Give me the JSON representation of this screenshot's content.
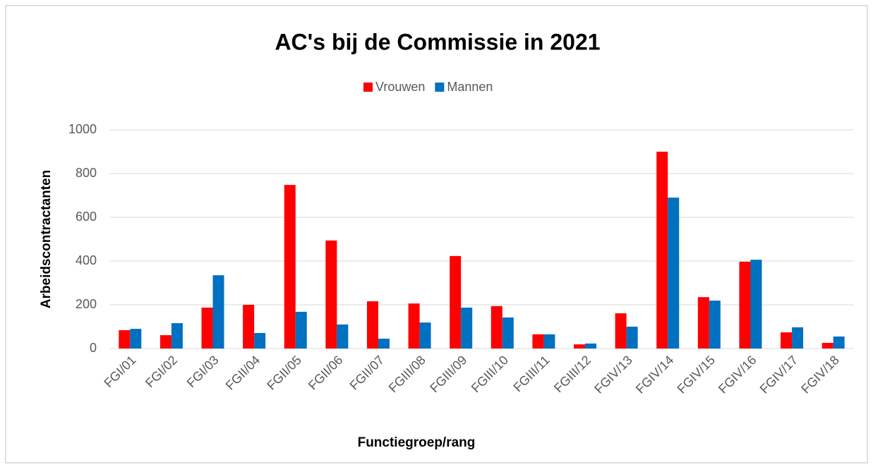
{
  "chart_data": {
    "type": "bar",
    "title": "AC's bij de Commissie in 2021",
    "x_label": "Functiegroep/rang",
    "y_label": "Arbeidscontractanten",
    "categories": [
      "FGI/01",
      "FGI/02",
      "FGI/03",
      "FGII/04",
      "FGII/05",
      "FGII/06",
      "FGII/07",
      "FGIII/08",
      "FGIII/09",
      "FGIII/10",
      "FGIII/11",
      "FGIII/12",
      "FGIV/13",
      "FGIV/14",
      "FGIV/15",
      "FGIV/16",
      "FGIV/17",
      "FGIV/18"
    ],
    "series": [
      {
        "name": "Vrouwen",
        "color": "#ff0000",
        "values": [
          84,
          61,
          187,
          200,
          748,
          494,
          216,
          206,
          423,
          194,
          65,
          19,
          161,
          900,
          235,
          397,
          74,
          26
        ]
      },
      {
        "name": "Mannen",
        "color": "#0070c0",
        "values": [
          90,
          116,
          335,
          71,
          168,
          110,
          45,
          119,
          187,
          142,
          65,
          23,
          100,
          690,
          219,
          406,
          97,
          55
        ]
      }
    ],
    "ylim": [
      0,
      1000
    ],
    "yticks": [
      0,
      200,
      400,
      600,
      800,
      1000
    ],
    "grid": true,
    "legend": "top"
  }
}
